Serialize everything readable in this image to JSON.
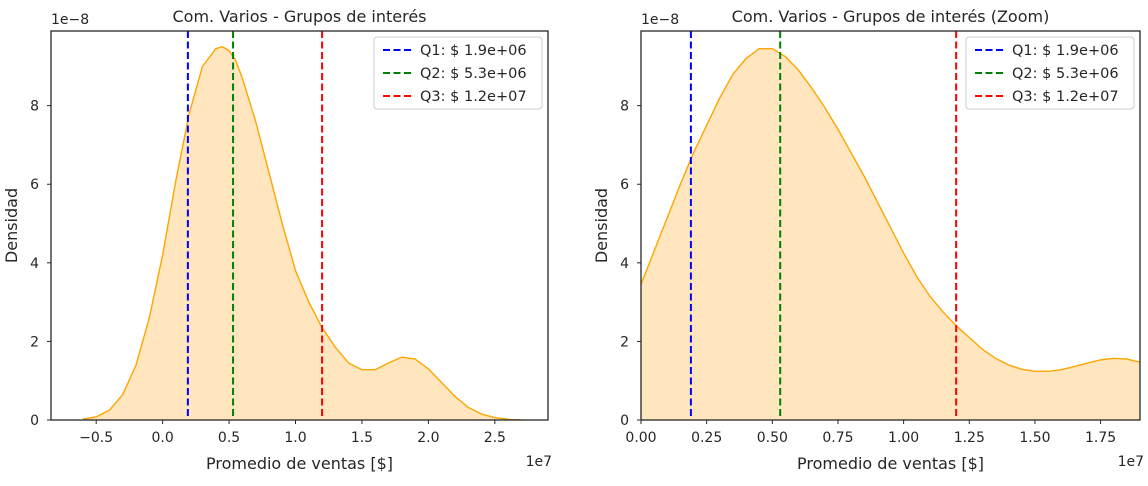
{
  "chart_data": [
    {
      "type": "area",
      "title": "Com. Varios - Grupos de interés",
      "xlabel": "Promedio de ventas [$]",
      "ylabel": "Densidad",
      "x_offset_label": "1e7",
      "y_offset_label": "1e−8",
      "xlim": [
        -0.84,
        2.9
      ],
      "ylim": [
        0,
        9.9
      ],
      "x_ticks": [
        -0.5,
        0.0,
        0.5,
        1.0,
        1.5,
        2.0,
        2.5
      ],
      "x_tick_labels": [
        "−0.5",
        "0.0",
        "0.5",
        "1.0",
        "1.5",
        "2.0",
        "2.5"
      ],
      "y_ticks": [
        0,
        2,
        4,
        6,
        8
      ],
      "y_tick_labels": [
        "0",
        "2",
        "4",
        "6",
        "8"
      ],
      "grid": false,
      "legend_position": "top-right",
      "fill_color": "#ffe6bf",
      "line_color": "#ffa500",
      "density": {
        "x": [
          -0.6,
          -0.5,
          -0.4,
          -0.3,
          -0.2,
          -0.1,
          0.0,
          0.1,
          0.2,
          0.3,
          0.4,
          0.45,
          0.5,
          0.55,
          0.6,
          0.7,
          0.8,
          0.9,
          1.0,
          1.1,
          1.2,
          1.3,
          1.4,
          1.5,
          1.6,
          1.7,
          1.8,
          1.9,
          2.0,
          2.1,
          2.2,
          2.3,
          2.4,
          2.5,
          2.6,
          2.7
        ],
        "y": [
          0.02,
          0.08,
          0.25,
          0.65,
          1.4,
          2.6,
          4.2,
          6.1,
          7.8,
          9.0,
          9.45,
          9.5,
          9.4,
          9.15,
          8.7,
          7.6,
          6.3,
          5.0,
          3.8,
          3.0,
          2.35,
          1.85,
          1.45,
          1.28,
          1.28,
          1.45,
          1.6,
          1.55,
          1.3,
          0.95,
          0.6,
          0.32,
          0.15,
          0.06,
          0.02,
          0.0
        ]
      },
      "quartile_lines": [
        {
          "label": "Q1: $ 1.9e+06",
          "x": 0.19,
          "color": "#0000ff"
        },
        {
          "label": "Q2: $ 5.3e+06",
          "x": 0.53,
          "color": "#008000"
        },
        {
          "label": "Q3: $ 1.2e+07",
          "x": 1.2,
          "color": "#ff0000"
        }
      ]
    },
    {
      "type": "area",
      "title": "Com. Varios - Grupos de interés (Zoom)",
      "xlabel": "Promedio de ventas [$]",
      "ylabel": "Densidad",
      "x_offset_label": "1e7",
      "y_offset_label": "1e−8",
      "xlim": [
        0.0,
        1.9
      ],
      "ylim": [
        0,
        9.9
      ],
      "x_ticks": [
        0.0,
        0.25,
        0.5,
        0.75,
        1.0,
        1.25,
        1.5,
        1.75
      ],
      "x_tick_labels": [
        "0.00",
        "0.25",
        "0.50",
        "0.75",
        "1.00",
        "1.25",
        "1.50",
        "1.75"
      ],
      "y_ticks": [
        0,
        2,
        4,
        6,
        8
      ],
      "y_tick_labels": [
        "0",
        "2",
        "4",
        "6",
        "8"
      ],
      "grid": false,
      "legend_position": "top-right",
      "fill_color": "#ffe6bf",
      "line_color": "#ffa500",
      "density": {
        "x": [
          0.0,
          0.05,
          0.1,
          0.15,
          0.2,
          0.25,
          0.3,
          0.35,
          0.4,
          0.45,
          0.5,
          0.55,
          0.6,
          0.65,
          0.7,
          0.75,
          0.8,
          0.85,
          0.9,
          0.95,
          1.0,
          1.05,
          1.1,
          1.15,
          1.2,
          1.25,
          1.3,
          1.35,
          1.4,
          1.45,
          1.5,
          1.55,
          1.6,
          1.65,
          1.7,
          1.75,
          1.8,
          1.85,
          1.9
        ],
        "y": [
          3.45,
          4.3,
          5.15,
          6.0,
          6.8,
          7.5,
          8.2,
          8.8,
          9.2,
          9.45,
          9.45,
          9.25,
          8.9,
          8.45,
          7.95,
          7.4,
          6.8,
          6.2,
          5.55,
          4.9,
          4.25,
          3.65,
          3.15,
          2.75,
          2.4,
          2.1,
          1.8,
          1.57,
          1.4,
          1.29,
          1.24,
          1.24,
          1.28,
          1.36,
          1.45,
          1.53,
          1.57,
          1.55,
          1.47
        ]
      },
      "quartile_lines": [
        {
          "label": "Q1: $ 1.9e+06",
          "x": 0.19,
          "color": "#0000ff"
        },
        {
          "label": "Q2: $ 5.3e+06",
          "x": 0.53,
          "color": "#008000"
        },
        {
          "label": "Q3: $ 1.2e+07",
          "x": 1.2,
          "color": "#ff0000"
        }
      ]
    }
  ]
}
